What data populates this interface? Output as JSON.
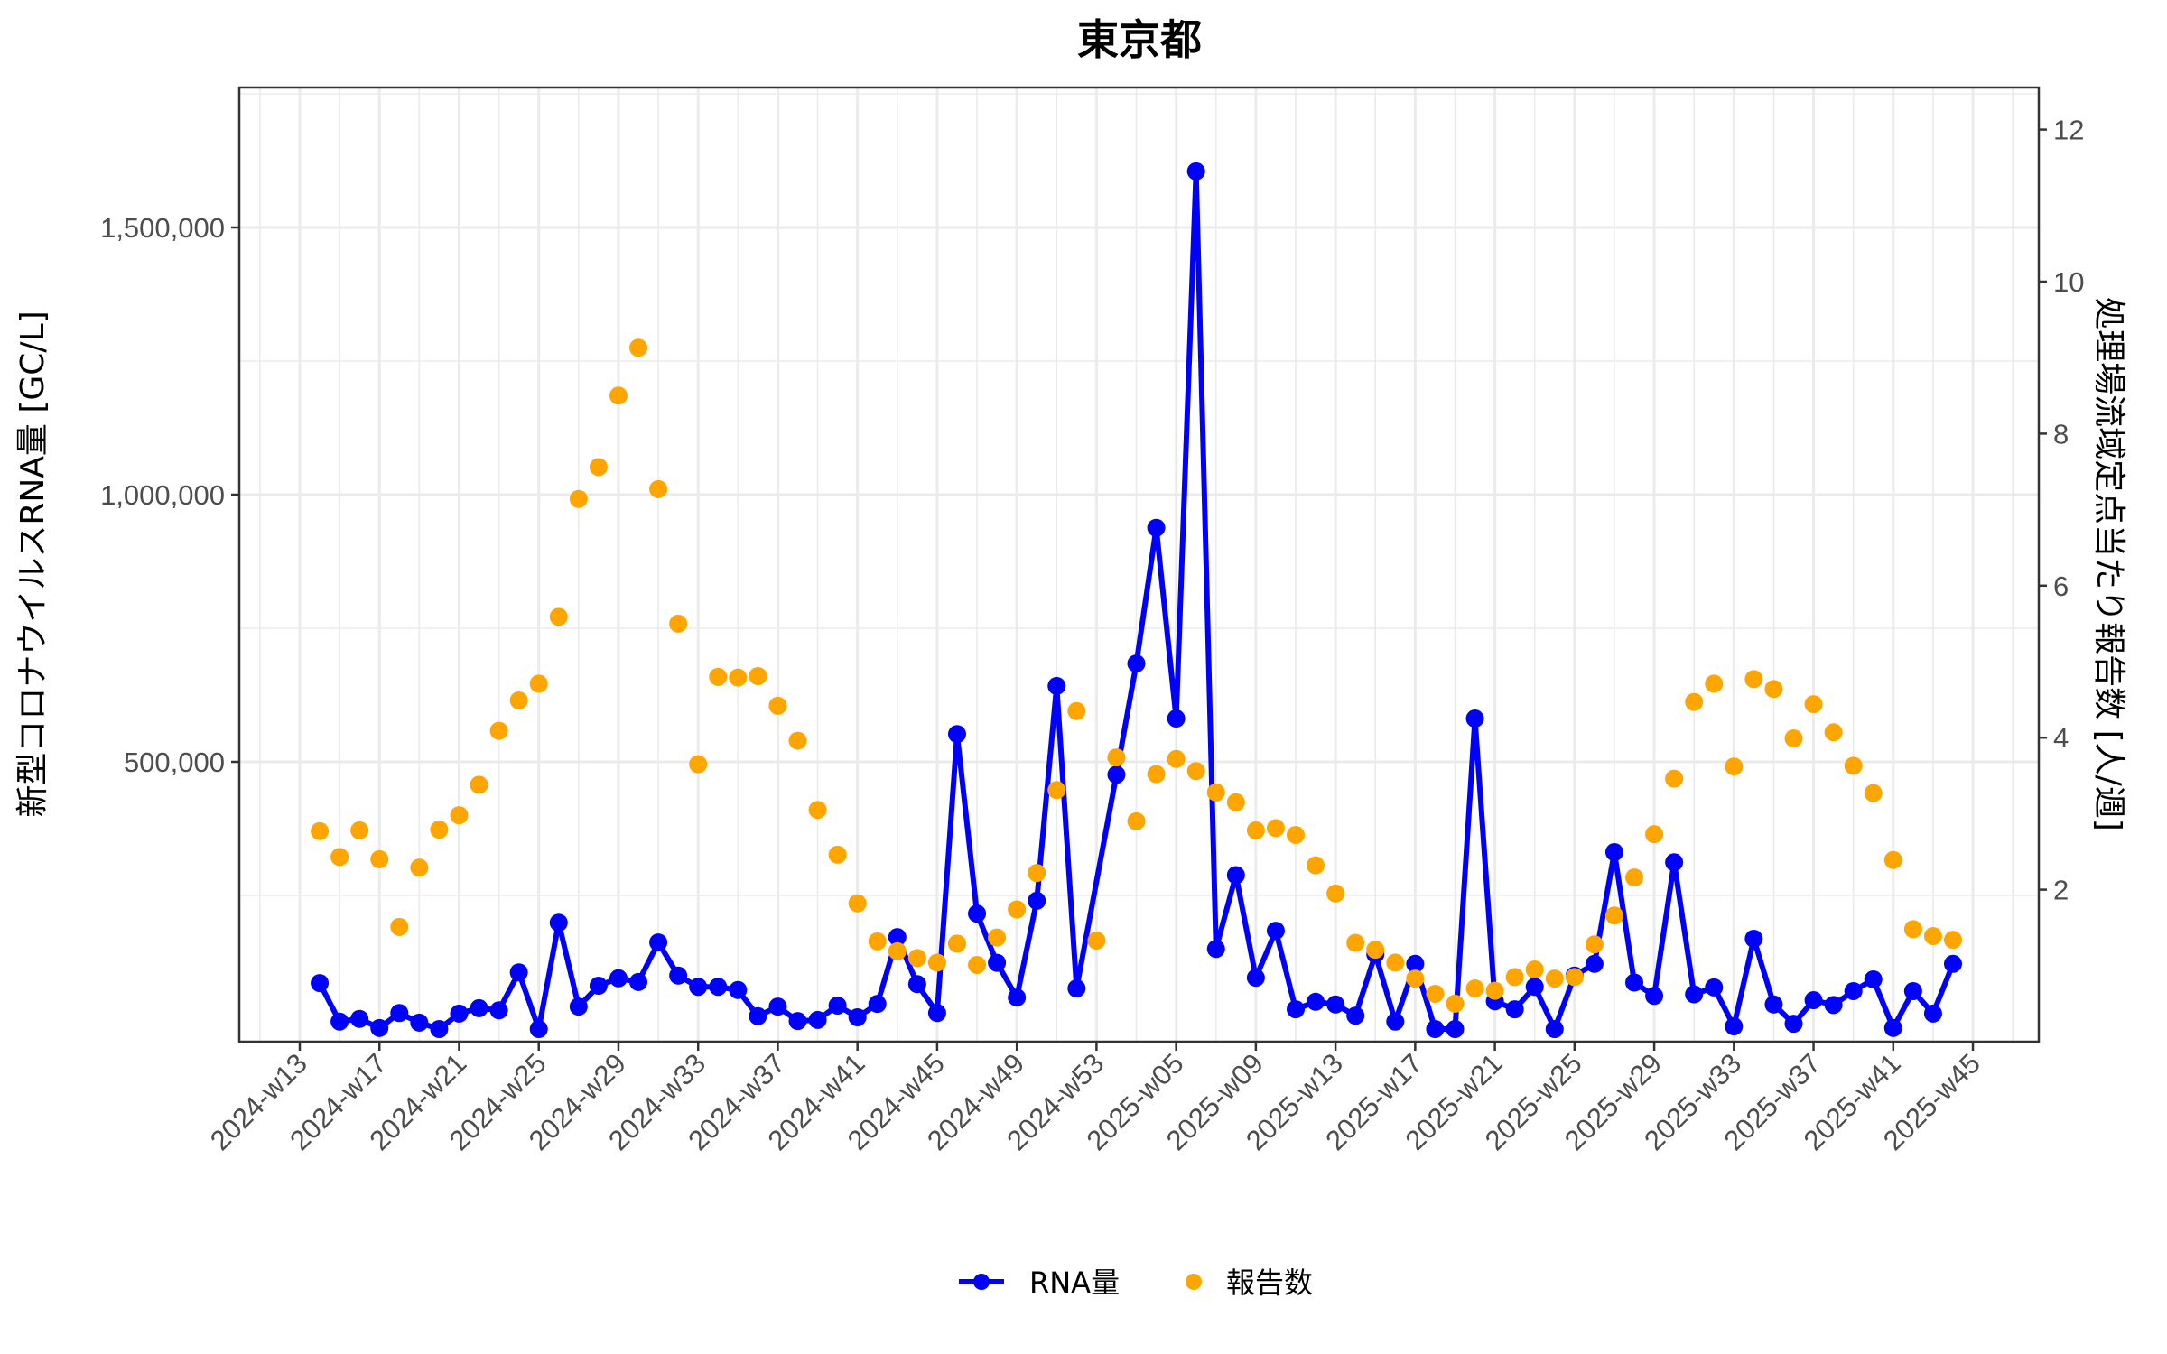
{
  "chart_data": {
    "type": "line",
    "title": "東京都",
    "xlabel": "",
    "ylabel": "新型コロナウイルスRNA量 [GC/L]",
    "y2label": "処理場流域定点当たり報告数 [人/週]",
    "ylim": [
      0,
      1780000
    ],
    "y2lim": [
      0,
      12.4
    ],
    "yticks": [
      500000,
      1000000,
      1500000
    ],
    "ytick_labels": [
      "500,000",
      "1,000,000",
      "1,500,000"
    ],
    "y2ticks": [
      2,
      4,
      6,
      8,
      10,
      12
    ],
    "grid": true,
    "legend_position": "bottom",
    "xtick_labels": [
      "2024-w13",
      "2024-w17",
      "2024-w21",
      "2024-w25",
      "2024-w29",
      "2024-w33",
      "2024-w37",
      "2024-w41",
      "2024-w45",
      "2024-w49",
      "2024-w53",
      "2025-w05",
      "2025-w09",
      "2025-w13",
      "2025-w17",
      "2025-w21",
      "2025-w25",
      "2025-w29",
      "2025-w33",
      "2025-w37",
      "2025-w41",
      "2025-w45"
    ],
    "categories": [
      "2024-w13",
      "2024-w14",
      "2024-w15",
      "2024-w16",
      "2024-w17",
      "2024-w18",
      "2024-w19",
      "2024-w20",
      "2024-w21",
      "2024-w22",
      "2024-w23",
      "2024-w24",
      "2024-w25",
      "2024-w26",
      "2024-w27",
      "2024-w28",
      "2024-w29",
      "2024-w30",
      "2024-w31",
      "2024-w32",
      "2024-w33",
      "2024-w34",
      "2024-w35",
      "2024-w36",
      "2024-w37",
      "2024-w38",
      "2024-w39",
      "2024-w40",
      "2024-w41",
      "2024-w42",
      "2024-w43",
      "2024-w44",
      "2024-w45",
      "2024-w46",
      "2024-w47",
      "2024-w48",
      "2024-w49",
      "2024-w50",
      "2024-w51",
      "2024-w52",
      "2024-w53",
      "2025-w02",
      "2025-w03",
      "2025-w04",
      "2025-w05",
      "2025-w06",
      "2025-w07",
      "2025-w08",
      "2025-w09",
      "2025-w10",
      "2025-w11",
      "2025-w12",
      "2025-w13",
      "2025-w14",
      "2025-w15",
      "2025-w16",
      "2025-w17",
      "2025-w18",
      "2025-w19",
      "2025-w20",
      "2025-w21",
      "2025-w22",
      "2025-w23",
      "2025-w24",
      "2025-w25",
      "2025-w26",
      "2025-w27",
      "2025-w28",
      "2025-w29",
      "2025-w30",
      "2025-w31",
      "2025-w32",
      "2025-w33",
      "2025-w34",
      "2025-w35",
      "2025-w36",
      "2025-w37",
      "2025-w38",
      "2025-w39",
      "2025-w40",
      "2025-w41",
      "2025-w42",
      "2025-w43",
      "2025-w44",
      "2025-w45"
    ],
    "series": [
      {
        "name": "RNA量",
        "axis": "left",
        "style": "line+points",
        "color": "#0000ff",
        "values": [
          null,
          86000,
          14000,
          19000,
          2000,
          30000,
          12000,
          0,
          29000,
          39000,
          35000,
          106000,
          0,
          199000,
          42000,
          81000,
          95000,
          88000,
          162000,
          100000,
          79000,
          79000,
          73000,
          24000,
          42000,
          15000,
          17000,
          44000,
          22000,
          47000,
          172000,
          84000,
          30000,
          552000,
          216000,
          124000,
          59000,
          240000,
          642000,
          76000,
          null,
          476000,
          684000,
          938000,
          581000,
          1605000,
          150000,
          288000,
          96000,
          184000,
          37000,
          51000,
          46000,
          25000,
          140000,
          14000,
          122000,
          0,
          0,
          581000,
          52000,
          37000,
          79000,
          0,
          100000,
          122000,
          331000,
          87000,
          62000,
          312000,
          65000,
          78000,
          5000,
          169000,
          46000,
          10000,
          54000,
          45000,
          71000,
          93000,
          2000,
          71000,
          29000,
          122000,
          null
        ]
      },
      {
        "name": "報告数",
        "axis": "right",
        "style": "points",
        "color": "#ffa500",
        "values": [
          null,
          2.77,
          2.43,
          2.78,
          2.4,
          1.51,
          2.29,
          2.79,
          2.98,
          3.38,
          4.09,
          4.49,
          4.71,
          5.59,
          7.14,
          7.56,
          8.5,
          9.13,
          7.27,
          5.5,
          3.65,
          4.8,
          4.79,
          4.81,
          4.42,
          3.96,
          3.05,
          2.46,
          1.82,
          1.32,
          1.19,
          1.1,
          1.04,
          1.29,
          1.01,
          1.37,
          1.74,
          2.22,
          3.31,
          4.35,
          1.33,
          3.74,
          2.9,
          3.52,
          3.72,
          3.56,
          3.28,
          3.15,
          2.78,
          2.81,
          2.72,
          2.32,
          1.95,
          1.3,
          1.21,
          1.04,
          0.83,
          0.63,
          0.5,
          0.7,
          0.67,
          0.85,
          0.95,
          0.83,
          0.85,
          1.28,
          1.66,
          2.16,
          2.73,
          3.46,
          4.47,
          4.71,
          3.62,
          4.77,
          4.64,
          3.99,
          4.44,
          4.07,
          3.63,
          3.27,
          2.39,
          1.48,
          1.39,
          1.34,
          null
        ]
      }
    ]
  },
  "legend": {
    "rna_label": "RNA量",
    "report_label": "報告数"
  }
}
